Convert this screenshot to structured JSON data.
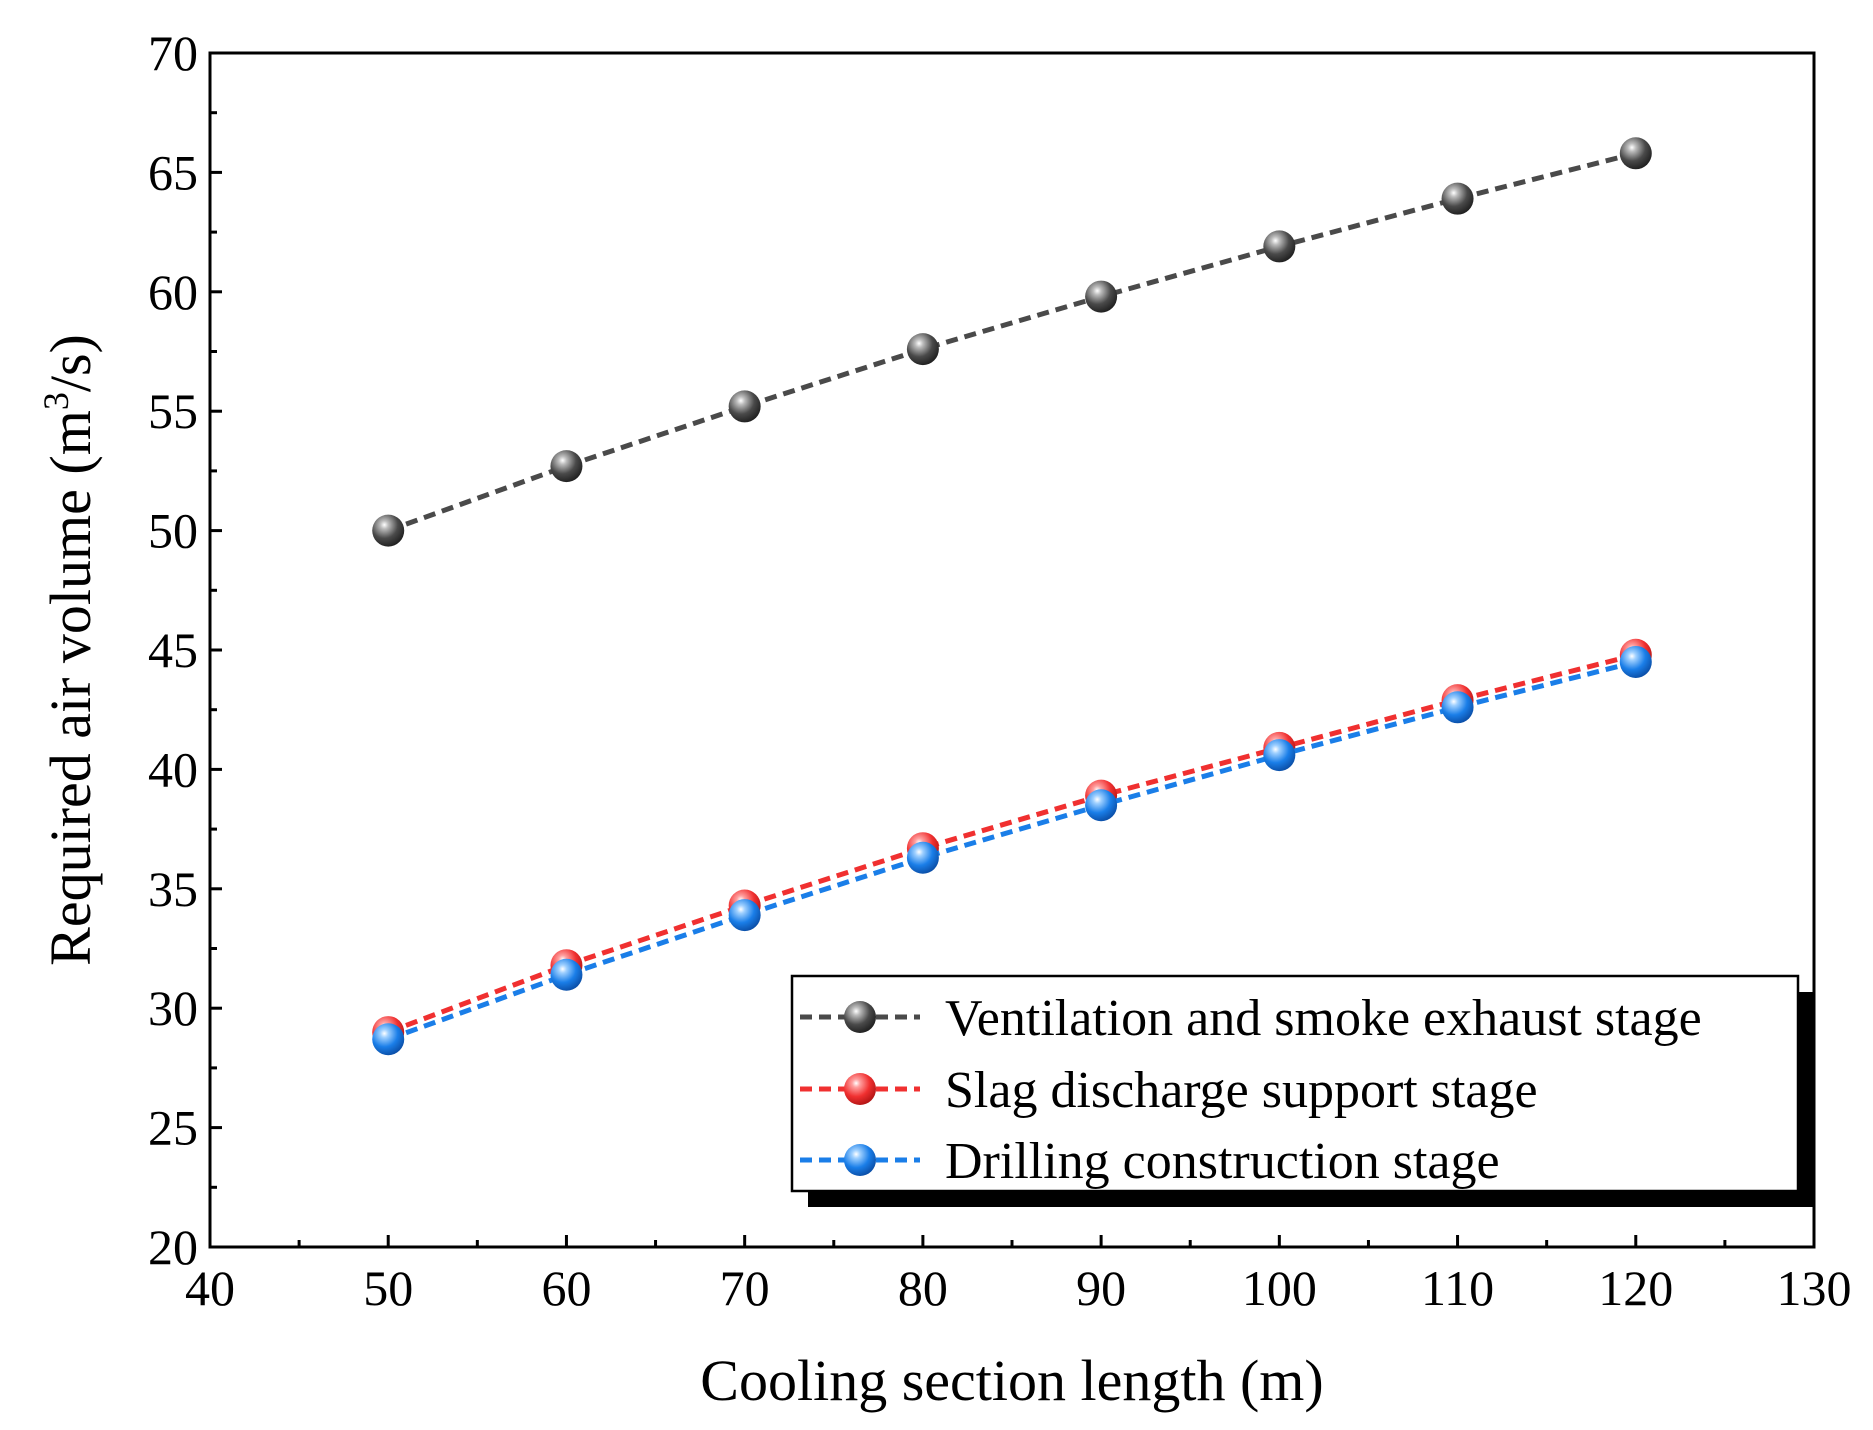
{
  "chart_data": {
    "type": "line",
    "title": "",
    "xlabel": "Cooling section length (m)",
    "ylabel": "Required air volume (m",
    "ylabel_sup": "3",
    "ylabel_tail": "/s)",
    "xlim": [
      40,
      130
    ],
    "ylim": [
      20,
      70
    ],
    "xticks": [
      40,
      50,
      60,
      70,
      80,
      90,
      100,
      110,
      120,
      130
    ],
    "yticks": [
      20,
      25,
      30,
      35,
      40,
      45,
      50,
      55,
      60,
      65,
      70
    ],
    "grid": false,
    "legend_position": "bottom-right",
    "x": [
      50,
      60,
      70,
      80,
      90,
      100,
      110,
      120
    ],
    "series": [
      {
        "name": "Ventilation and smoke exhaust stage",
        "color": "#4a4a4a",
        "values": [
          50.0,
          52.7,
          55.2,
          57.6,
          59.8,
          61.9,
          63.9,
          65.8
        ]
      },
      {
        "name": "Slag discharge support stage",
        "color": "#f03030",
        "values": [
          29.0,
          31.8,
          34.3,
          36.7,
          38.9,
          40.9,
          42.9,
          44.8
        ]
      },
      {
        "name": "Drilling construction stage",
        "color": "#1a7ee8",
        "values": [
          28.7,
          31.4,
          33.9,
          36.3,
          38.5,
          40.6,
          42.6,
          44.5
        ]
      }
    ]
  }
}
